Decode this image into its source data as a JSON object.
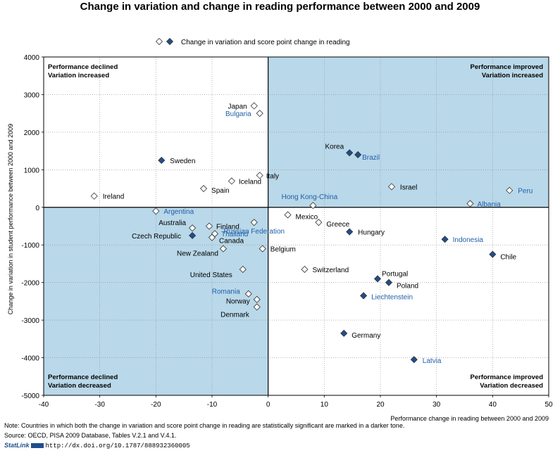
{
  "chart_data": {
    "type": "scatter",
    "title": "Change in variation and change in reading performance between 2000 and 2009",
    "xlabel": "Performance change in reading between 2000 and 2009",
    "ylabel": "Change in variation in student performance between 2000 and 2009",
    "xlim": [
      -40,
      50
    ],
    "ylim": [
      -5000,
      4000
    ],
    "x_ticks": [
      -40,
      -30,
      -20,
      -10,
      0,
      10,
      20,
      30,
      40,
      50
    ],
    "y_ticks": [
      -5000,
      -4000,
      -3000,
      -2000,
      -1000,
      0,
      1000,
      2000,
      3000,
      4000
    ],
    "grid": "dotted",
    "legend": {
      "label": "Change in variation and score point change in reading",
      "position": "top-center"
    },
    "colors": {
      "shade": "#b9d8e9",
      "significant_marker": "#1f4e8c",
      "significant_label": "#1f5fa8",
      "normal_marker": "#ffffff",
      "marker_stroke": "#333333",
      "text": "#000000"
    },
    "quadrant_labels": {
      "top_left": [
        "Performance declined",
        "Variation increased"
      ],
      "top_right": [
        "Performance improved",
        "Variation increased"
      ],
      "bottom_left": [
        "Performance declined",
        "Variation decreased"
      ],
      "bottom_right": [
        "Performance improved",
        "Variation decreased"
      ]
    },
    "points": [
      {
        "label": "Japan",
        "x": -2.5,
        "y": 2700,
        "sig": false,
        "anchor": "end",
        "dx": -10,
        "dy": 4
      },
      {
        "label": "Bulgaria",
        "x": -1.5,
        "y": 2500,
        "sig": false,
        "anchor": "end",
        "dx": -12,
        "dy": 4
      },
      {
        "label": "Sweden",
        "x": -19,
        "y": 1250,
        "sig": true,
        "anchor": "start",
        "dx": 12,
        "dy": 4
      },
      {
        "label": "Italy",
        "x": -1.5,
        "y": 850,
        "sig": false,
        "anchor": "start",
        "dx": 9,
        "dy": 4
      },
      {
        "label": "Iceland",
        "x": -6.5,
        "y": 700,
        "sig": false,
        "anchor": "start",
        "dx": 10,
        "dy": 4
      },
      {
        "label": "Spain",
        "x": -11.5,
        "y": 500,
        "sig": false,
        "anchor": "start",
        "dx": 11,
        "dy": 6
      },
      {
        "label": "Ireland",
        "x": -31,
        "y": 300,
        "sig": false,
        "anchor": "start",
        "dx": 12,
        "dy": 4
      },
      {
        "label": "Korea",
        "x": 14.5,
        "y": 1450,
        "sig": true,
        "anchor": "end",
        "dx": -8,
        "dy": -6
      },
      {
        "label": "Brazil",
        "x": 16,
        "y": 1400,
        "sig": true,
        "anchor": "start",
        "dx": 6,
        "dy": 7
      },
      {
        "label": "Israel",
        "x": 22,
        "y": 550,
        "sig": false,
        "anchor": "start",
        "dx": 12,
        "dy": 4
      },
      {
        "label": "Peru",
        "x": 43,
        "y": 450,
        "sig": false,
        "anchor": "start",
        "dx": 12,
        "dy": 4
      },
      {
        "label": "Hong Kong-China",
        "x": 8,
        "y": 50,
        "sig": false,
        "anchor": "middle",
        "dx": -5,
        "dy": -9
      },
      {
        "label": "Albania",
        "x": 36,
        "y": 100,
        "sig": false,
        "anchor": "start",
        "dx": 10,
        "dy": 4
      },
      {
        "label": "Argentina",
        "x": -20,
        "y": -100,
        "sig": false,
        "anchor": "start",
        "dx": 11,
        "dy": 4
      },
      {
        "label": "Mexico",
        "x": 3.5,
        "y": -200,
        "sig": false,
        "anchor": "start",
        "dx": 11,
        "dy": 6
      },
      {
        "label": "Greece",
        "x": 9,
        "y": -400,
        "sig": false,
        "anchor": "start",
        "dx": 11,
        "dy": 6
      },
      {
        "label": "Australia",
        "x": -13.5,
        "y": -550,
        "sig": false,
        "anchor": "end",
        "dx": -9,
        "dy": -4
      },
      {
        "label": "Finland",
        "x": -10.5,
        "y": -500,
        "sig": false,
        "anchor": "start",
        "dx": 10,
        "dy": 4
      },
      {
        "label": "Russian Federation",
        "x": -2.5,
        "y": -400,
        "sig": false,
        "anchor": "middle",
        "dx": 0,
        "dy": 16
      },
      {
        "label": "Thailand",
        "x": -9.5,
        "y": -700,
        "sig": false,
        "anchor": "start",
        "dx": 9,
        "dy": 4
      },
      {
        "label": "Czech Republic",
        "x": -13.5,
        "y": -750,
        "sig": true,
        "anchor": "end",
        "dx": -16,
        "dy": 4
      },
      {
        "label": "Canada",
        "x": -10,
        "y": -800,
        "sig": false,
        "anchor": "start",
        "dx": 10,
        "dy": 8
      },
      {
        "label": "Hungary",
        "x": 14.5,
        "y": -650,
        "sig": true,
        "anchor": "start",
        "dx": 12,
        "dy": 4
      },
      {
        "label": "Indonesia",
        "x": 31.5,
        "y": -850,
        "sig": true,
        "anchor": "start",
        "dx": 11,
        "dy": 4
      },
      {
        "label": "New Zealand",
        "x": -8,
        "y": -1100,
        "sig": false,
        "anchor": "end",
        "dx": -7,
        "dy": 10
      },
      {
        "label": "Belgium",
        "x": -1,
        "y": -1100,
        "sig": false,
        "anchor": "start",
        "dx": 11,
        "dy": 4
      },
      {
        "label": "Chile",
        "x": 40,
        "y": -1250,
        "sig": true,
        "anchor": "start",
        "dx": 11,
        "dy": 7
      },
      {
        "label": "United States",
        "x": -4.5,
        "y": -1650,
        "sig": false,
        "anchor": "end",
        "dx": -15,
        "dy": 11
      },
      {
        "label": "Switzerland",
        "x": 6.5,
        "y": -1650,
        "sig": false,
        "anchor": "start",
        "dx": 11,
        "dy": 4
      },
      {
        "label": "Portugal",
        "x": 19.5,
        "y": -1900,
        "sig": true,
        "anchor": "start",
        "dx": 6,
        "dy": -4
      },
      {
        "label": "Poland",
        "x": 21.5,
        "y": -2000,
        "sig": true,
        "anchor": "start",
        "dx": 11,
        "dy": 8
      },
      {
        "label": "Liechtenstein",
        "x": 17,
        "y": -2350,
        "sig": true,
        "anchor": "start",
        "dx": 11,
        "dy": 5
      },
      {
        "label": "Romania",
        "x": -3.5,
        "y": -2300,
        "sig": false,
        "anchor": "end",
        "dx": -12,
        "dy": 0
      },
      {
        "label": "Norway",
        "x": -2,
        "y": -2450,
        "sig": false,
        "anchor": "end",
        "dx": -10,
        "dy": 6
      },
      {
        "label": "Denmark",
        "x": -2,
        "y": -2650,
        "sig": false,
        "anchor": "end",
        "dx": -11,
        "dy": 14
      },
      {
        "label": "Germany",
        "x": 13.5,
        "y": -3350,
        "sig": true,
        "anchor": "start",
        "dx": 11,
        "dy": 6
      },
      {
        "label": "Latvia",
        "x": 26,
        "y": -4050,
        "sig": true,
        "anchor": "start",
        "dx": 12,
        "dy": 5
      }
    ]
  },
  "footer": {
    "note": "Note: Countries in which both the change in variation and score point change in reading are statistically significant are marked in a darker tone.",
    "source": "Source:  OECD, PISA 2009 Database, Tables V.2.1 and V.4.1.",
    "statlink_label": "StatLink",
    "statlink_url": "http://dx.doi.org/10.1787/888932360005"
  }
}
